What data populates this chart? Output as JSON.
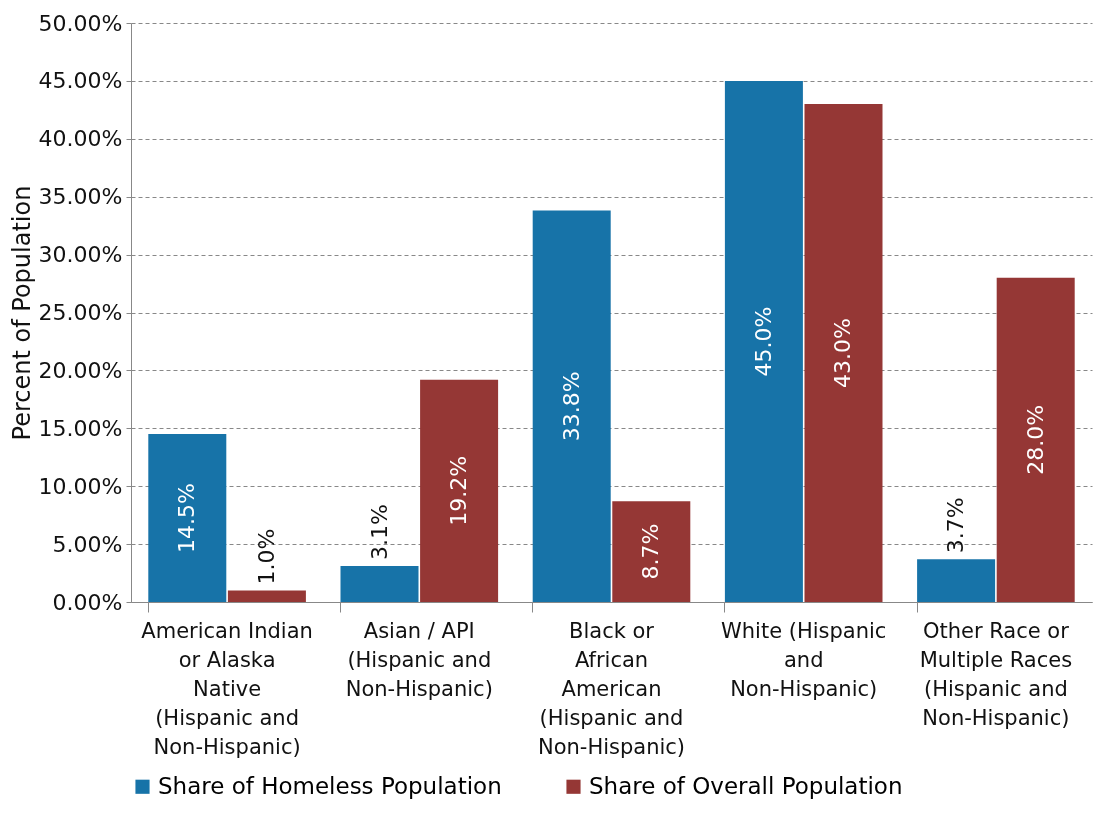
{
  "chart_data": {
    "type": "bar",
    "ylabel": "Percent of Population",
    "categories": [
      "American Indian or Alaska Native (Hispanic and Non-Hispanic)",
      "Asian / API (Hispanic and Non-Hispanic)",
      "Black or African American (Hispanic and Non-Hispanic)",
      "White (Hispanic and Non-Hispanic)",
      "Other Race or Multiple Races (Hispanic and Non-Hispanic)"
    ],
    "series": [
      {
        "name": "Share of Homeless Population",
        "color": "#1773a8",
        "values": [
          14.5,
          3.1,
          33.8,
          45.0,
          3.7
        ],
        "value_labels": [
          "14.5%",
          "3.1%",
          "33.8%",
          "45.0%",
          "3.7%"
        ]
      },
      {
        "name": "Share of Overall Population",
        "color": "#953735",
        "values": [
          1.0,
          19.2,
          8.7,
          43.0,
          28.0
        ],
        "value_labels": [
          "1.0%",
          "19.2%",
          "8.7%",
          "43.0%",
          "28.0%"
        ]
      }
    ],
    "ylim": [
      0,
      50
    ],
    "yticks": [
      {
        "value": 0,
        "label": "0.00%"
      },
      {
        "value": 5,
        "label": "5.00%"
      },
      {
        "value": 10,
        "label": "10.00%"
      },
      {
        "value": 15,
        "label": "15.00%"
      },
      {
        "value": 20,
        "label": "20.00%"
      },
      {
        "value": 25,
        "label": "25.00%"
      },
      {
        "value": 30,
        "label": "30.00%"
      },
      {
        "value": 35,
        "label": "35.00%"
      },
      {
        "value": 40,
        "label": "40.00%"
      },
      {
        "value": 45,
        "label": "45.00%"
      },
      {
        "value": 50,
        "label": "50.00%"
      }
    ],
    "grid": "y",
    "legend": "bottom"
  }
}
